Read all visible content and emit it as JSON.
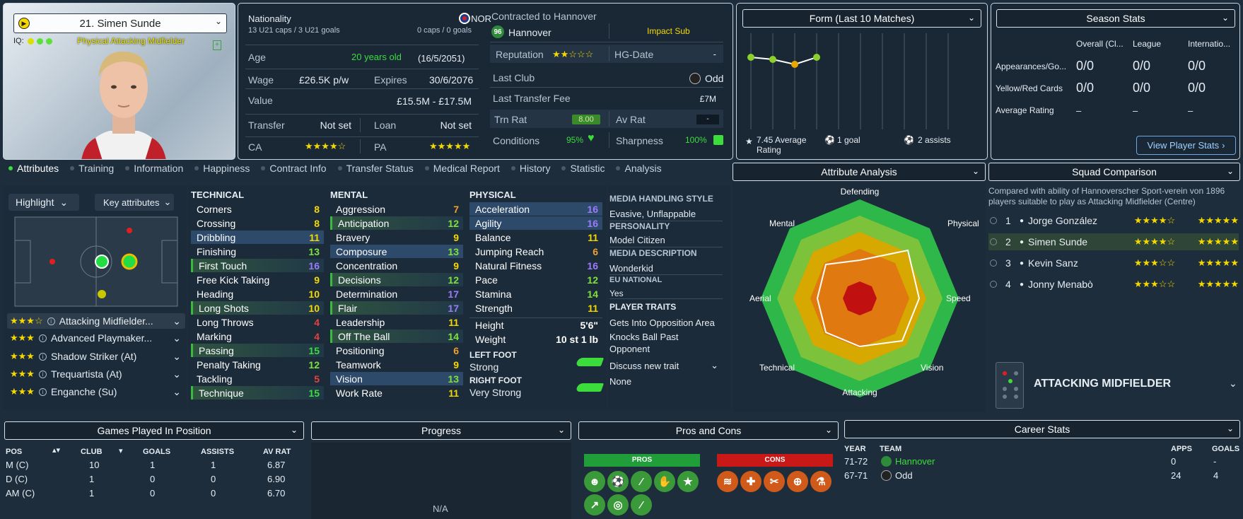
{
  "profile": {
    "player_selector": "21. Simen Sunde",
    "iq_label": "IQ:",
    "position_label": "Physical Attacking Midfielder"
  },
  "contract": {
    "nationality_label": "Nationality",
    "nationality_value": "NOR",
    "u21_caps": "13 U21 caps / 3 U21 goals",
    "caps": "0 caps / 0 goals",
    "age_label": "Age",
    "age_value": "20 years old",
    "dob": "(16/5/2051)",
    "wage_label": "Wage",
    "wage_value": "£26.5K p/w",
    "expires_label": "Expires",
    "expires_value": "30/6/2076",
    "value_label": "Value",
    "value_value": "£15.5M - £17.5M",
    "transfer_label": "Transfer",
    "transfer_value": "Not set",
    "loan_label": "Loan",
    "loan_value": "Not set",
    "ca_label": "CA",
    "ca_stars": "★★★★☆",
    "pa_label": "PA",
    "pa_stars": "★★★★★",
    "contracted_label": "Contracted to Hannover",
    "club": "Hannover",
    "squad_status": "Impact Sub",
    "reputation_label": "Reputation",
    "reputation_stars": "★★☆☆☆",
    "hg_label": "HG-Date",
    "hg_value": "-",
    "last_club_label": "Last Club",
    "last_club_value": "Odd",
    "last_fee_label": "Last Transfer Fee",
    "last_fee_value": "£7M",
    "trn_rat_label": "Trn Rat",
    "trn_rat_value": "8.00",
    "av_rat_label": "Av Rat",
    "av_rat_value": "-",
    "conditions_label": "Conditions",
    "conditions_value": "95%",
    "sharpness_label": "Sharpness",
    "sharpness_value": "100%"
  },
  "form": {
    "title": "Form (Last 10 Matches)",
    "avg_rating": "7.45 Average Rating",
    "goals": "1 goal",
    "assists": "2 assists"
  },
  "season": {
    "title": "Season Stats",
    "col1": "Overall (Cl...",
    "col2": "League",
    "col3": "Internatio...",
    "rows": [
      {
        "label": "Appearances/Go...",
        "v1": "0/0",
        "v2": "0/0",
        "v3": "0/0"
      },
      {
        "label": "Yellow/Red Cards",
        "v1": "0/0",
        "v2": "0/0",
        "v3": "0/0"
      },
      {
        "label": "Average Rating",
        "v1": "–",
        "v2": "–",
        "v3": "–"
      }
    ],
    "button": "View Player Stats"
  },
  "tabs": [
    "Attributes",
    "Training",
    "Information",
    "Happiness",
    "Contract Info",
    "Transfer Status",
    "Medical Report",
    "History",
    "Statistic",
    "Analysis"
  ],
  "left_controls": {
    "highlight": "Highlight",
    "key_attrs": "Key attributes"
  },
  "roles": [
    {
      "stars": "★★★☆",
      "name": "Attacking Midfielder..."
    },
    {
      "stars": "★★★",
      "name": "Advanced Playmaker..."
    },
    {
      "stars": "★★★",
      "name": "Shadow Striker (At)"
    },
    {
      "stars": "★★★",
      "name": "Trequartista (At)"
    },
    {
      "stars": "★★★",
      "name": "Enganche (Su)"
    }
  ],
  "technical": {
    "title": "TECHNICAL",
    "rows": [
      {
        "n": "Corners",
        "v": "8"
      },
      {
        "n": "Crossing",
        "v": "8"
      },
      {
        "n": "Dribbling",
        "v": "11"
      },
      {
        "n": "Finishing",
        "v": "13"
      },
      {
        "n": "First Touch",
        "v": "16"
      },
      {
        "n": "Free Kick Taking",
        "v": "9"
      },
      {
        "n": "Heading",
        "v": "10"
      },
      {
        "n": "Long Shots",
        "v": "10"
      },
      {
        "n": "Long Throws",
        "v": "4"
      },
      {
        "n": "Marking",
        "v": "4"
      },
      {
        "n": "Passing",
        "v": "15"
      },
      {
        "n": "Penalty Taking",
        "v": "12"
      },
      {
        "n": "Tackling",
        "v": "5"
      },
      {
        "n": "Technique",
        "v": "15"
      }
    ]
  },
  "mental": {
    "title": "MENTAL",
    "rows": [
      {
        "n": "Aggression",
        "v": "7"
      },
      {
        "n": "Anticipation",
        "v": "12"
      },
      {
        "n": "Bravery",
        "v": "9"
      },
      {
        "n": "Composure",
        "v": "13"
      },
      {
        "n": "Concentration",
        "v": "9"
      },
      {
        "n": "Decisions",
        "v": "12"
      },
      {
        "n": "Determination",
        "v": "17"
      },
      {
        "n": "Flair",
        "v": "17"
      },
      {
        "n": "Leadership",
        "v": "11"
      },
      {
        "n": "Off The Ball",
        "v": "14"
      },
      {
        "n": "Positioning",
        "v": "6"
      },
      {
        "n": "Teamwork",
        "v": "9"
      },
      {
        "n": "Vision",
        "v": "13"
      },
      {
        "n": "Work Rate",
        "v": "11"
      }
    ]
  },
  "physical": {
    "title": "PHYSICAL",
    "rows": [
      {
        "n": "Acceleration",
        "v": "16"
      },
      {
        "n": "Agility",
        "v": "16"
      },
      {
        "n": "Balance",
        "v": "11"
      },
      {
        "n": "Jumping Reach",
        "v": "6"
      },
      {
        "n": "Natural Fitness",
        "v": "16"
      },
      {
        "n": "Pace",
        "v": "12"
      },
      {
        "n": "Stamina",
        "v": "14"
      },
      {
        "n": "Strength",
        "v": "11"
      }
    ],
    "height_label": "Height",
    "height_value": "5'6\"",
    "weight_label": "Weight",
    "weight_value": "10 st 1 lb",
    "left_foot_label": "LEFT FOOT",
    "left_foot_value": "Strong",
    "right_foot_label": "RIGHT FOOT",
    "right_foot_value": "Very Strong"
  },
  "media": {
    "mhs_title": "MEDIA HANDLING STYLE",
    "mhs_value": "Evasive, Unflappable",
    "pers_title": "PERSONALITY",
    "pers_value": "Model Citizen",
    "desc_title": "MEDIA DESCRIPTION",
    "desc_value": "Wonderkid",
    "eu_title": "EU NATIONAL",
    "eu_value": "Yes",
    "traits_title": "PLAYER TRAITS",
    "trait1": "Gets Into Opposition Area",
    "trait2a": "Knocks Ball Past",
    "trait2b": "Opponent",
    "discuss": "Discuss new trait",
    "none": "None"
  },
  "analysis": {
    "title": "Attribute Analysis",
    "axes": [
      "Defending",
      "Physical",
      "Speed",
      "Vision",
      "Attacking",
      "Technical",
      "Aerial",
      "Mental"
    ]
  },
  "squad": {
    "title": "Squad Comparison",
    "desc1": "Compared with ability of Hannoverscher Sport-verein von 1896",
    "desc2": "players suitable to play as Attacking Midfielder (Centre)",
    "rows": [
      {
        "rank": "1",
        "name": "Jorge González",
        "ca": "★★★★☆",
        "pa": "★★★★★"
      },
      {
        "rank": "2",
        "name": "Simen Sunde",
        "ca": "★★★★☆",
        "pa": "★★★★★"
      },
      {
        "rank": "3",
        "name": "Kevin Sanz",
        "ca": "★★★☆☆",
        "pa": "★★★★★"
      },
      {
        "rank": "4",
        "name": "Jonny Menabò",
        "ca": "★★★☆☆",
        "pa": "★★★★★"
      }
    ],
    "role": "ATTACKING MIDFIELDER"
  },
  "games": {
    "title": "Games Played In Position",
    "headers": [
      "POS",
      "CLUB",
      "GOALS",
      "ASSISTS",
      "AV RAT"
    ],
    "rows": [
      {
        "pos": "M (C)",
        "club": "10",
        "goals": "1",
        "assists": "1",
        "av": "6.87"
      },
      {
        "pos": "D (C)",
        "club": "1",
        "goals": "0",
        "assists": "0",
        "av": "6.90"
      },
      {
        "pos": "AM (C)",
        "club": "1",
        "goals": "0",
        "assists": "0",
        "av": "6.70"
      }
    ]
  },
  "progress": {
    "title": "Progress",
    "na": "N/A"
  },
  "proscons": {
    "title": "Pros and Cons",
    "pros": "PROS",
    "cons": "CONS"
  },
  "career": {
    "title": "Career Stats",
    "headers": [
      "YEAR",
      "TEAM",
      "APPS",
      "GOALS"
    ],
    "rows": [
      {
        "year": "71-72",
        "team": "Hannover",
        "apps": "0",
        "goals": "-"
      },
      {
        "year": "67-71",
        "team": "Odd",
        "apps": "24",
        "goals": "4"
      }
    ]
  }
}
